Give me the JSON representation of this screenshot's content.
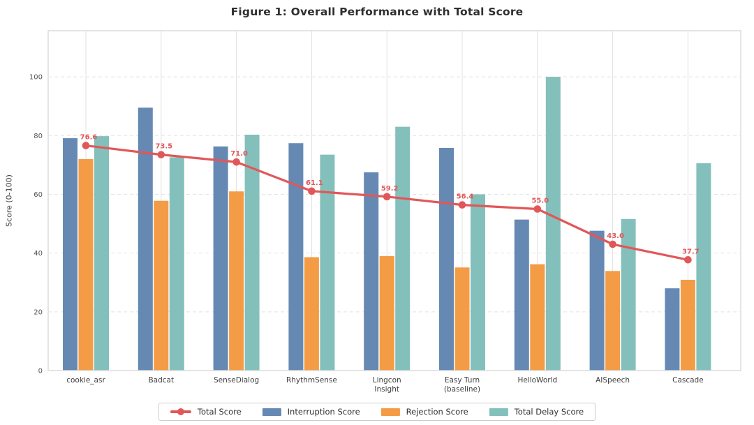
{
  "chart_data": {
    "type": "bar",
    "title": "Figure 1: Overall Performance with Total Score",
    "ylabel": "Score (0-100)",
    "xlabel": "",
    "categories": [
      "cookie_asr",
      "Badcat",
      "SenseDialog",
      "RhythmSense",
      "Lingcon\nInsight",
      "Easy Turn\n(baseline)",
      "HelloWorld",
      "AISpeech",
      "Cascade"
    ],
    "ylim": [
      0,
      115.7
    ],
    "yticks": [
      0,
      20,
      40,
      60,
      80,
      100
    ],
    "grid": true,
    "legend_position": "bottom",
    "series": [
      {
        "name": "Total Score",
        "type": "line",
        "color": "#e15759",
        "values": [
          76.6,
          73.5,
          71.0,
          61.1,
          59.2,
          56.4,
          55.0,
          43.0,
          37.7
        ],
        "point_labels": [
          "76.6",
          "73.5",
          "71.0",
          "61.1",
          "59.2",
          "56.4",
          "55.0",
          "43.0",
          "37.7"
        ]
      },
      {
        "name": "Interruption Score",
        "type": "bar",
        "color": "#6589b2",
        "values": [
          79.1,
          89.5,
          76.3,
          77.4,
          67.5,
          75.8,
          51.4,
          47.6,
          28.0
        ]
      },
      {
        "name": "Rejection Score",
        "type": "bar",
        "color": "#f39c45",
        "values": [
          72.0,
          57.8,
          61.0,
          38.6,
          39.0,
          35.1,
          36.2,
          33.9,
          30.9
        ]
      },
      {
        "name": "Total Delay Score",
        "type": "bar",
        "color": "#84c0bb",
        "values": [
          79.8,
          72.6,
          80.3,
          73.5,
          83.0,
          60.0,
          100.0,
          51.6,
          70.6
        ]
      }
    ]
  }
}
